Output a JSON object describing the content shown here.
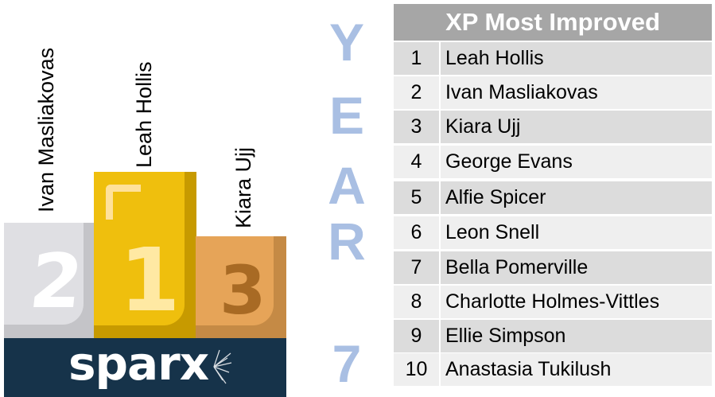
{
  "podium": {
    "second": {
      "place": "2",
      "name": "Ivan Masliakovas"
    },
    "first": {
      "place": "1",
      "name": "Leah Hollis"
    },
    "third": {
      "place": "3",
      "name": "Kiara Ujj"
    },
    "logo": {
      "text": "spar",
      "text_x": "x"
    }
  },
  "year": {
    "letters": [
      "Y",
      "E",
      "A",
      "R",
      "7"
    ]
  },
  "table": {
    "title": "XP Most Improved",
    "rows": [
      {
        "rank": "1",
        "name": "Leah Hollis"
      },
      {
        "rank": "2",
        "name": "Ivan Masliakovas"
      },
      {
        "rank": "3",
        "name": "Kiara Ujj"
      },
      {
        "rank": "4",
        "name": "George Evans"
      },
      {
        "rank": "5",
        "name": "Alfie Spicer"
      },
      {
        "rank": "6",
        "name": "Leon Snell"
      },
      {
        "rank": "7",
        "name": "Bella Pomerville"
      },
      {
        "rank": "8",
        "name": "Charlotte Holmes-Vittles"
      },
      {
        "rank": "9",
        "name": "Ellie Simpson"
      },
      {
        "rank": "10",
        "name": "Anastasia Tukilush"
      }
    ]
  },
  "colors": {
    "gold": "#efbf0d",
    "silver": "#dfdfe3",
    "bronze": "#e6a458",
    "base": "#16334a",
    "year": "#a9bfe3",
    "header": "#a6a6a6"
  }
}
